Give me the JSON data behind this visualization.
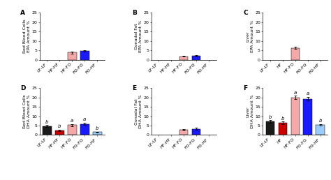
{
  "panels": [
    {
      "label": "A",
      "ylabel": "Red Blood Cells\nEPA Amount %",
      "ylim": [
        0,
        25
      ],
      "yticks": [
        0,
        5,
        10,
        15,
        20,
        25
      ],
      "categories": [
        "LF-LF",
        "HF-HF",
        "HF-FO",
        "FO-FO",
        "FO-HF"
      ],
      "values": [
        0,
        0,
        3.8,
        4.5,
        0
      ],
      "errors": [
        0,
        0,
        0.5,
        0.4,
        0
      ],
      "colors": [
        "#1a1a1a",
        "#cc0000",
        "#f4a9a8",
        "#1a1aff",
        "#99ccff"
      ],
      "sig_labels": [
        "",
        "",
        "",
        "",
        ""
      ]
    },
    {
      "label": "B",
      "ylabel": "Gonadal Fat\nEPA Amount %",
      "ylim": [
        0,
        25
      ],
      "yticks": [
        0,
        5,
        10,
        15,
        20,
        25
      ],
      "categories": [
        "LF-LF",
        "HF-HF",
        "HF-FO",
        "FO-FO",
        "FO-HF"
      ],
      "values": [
        0,
        0,
        1.7,
        2.1,
        0
      ],
      "errors": [
        0,
        0,
        0.2,
        0.3,
        0
      ],
      "colors": [
        "#1a1a1a",
        "#cc0000",
        "#f4a9a8",
        "#1a1aff",
        "#99ccff"
      ],
      "sig_labels": [
        "",
        "",
        "",
        "",
        ""
      ]
    },
    {
      "label": "C",
      "ylabel": "Liver\nEPA Amount %",
      "ylim": [
        0,
        25
      ],
      "yticks": [
        0,
        5,
        10,
        15,
        20,
        25
      ],
      "categories": [
        "LF-LF",
        "HF",
        "HF-FO",
        "FO-FO",
        "FO-HF"
      ],
      "values": [
        0,
        0,
        6.2,
        0,
        0
      ],
      "errors": [
        0,
        0,
        0.5,
        0,
        0
      ],
      "colors": [
        "#1a1a1a",
        "#cc0000",
        "#f4a9a8",
        "#1a1aff",
        "#99ccff"
      ],
      "sig_labels": [
        "",
        "",
        "",
        "",
        ""
      ]
    },
    {
      "label": "D",
      "ylabel": "Red Blood Cells\nDHA Amount %",
      "ylim": [
        0,
        25
      ],
      "yticks": [
        0,
        5,
        10,
        15,
        20,
        25
      ],
      "categories": [
        "LF-LF",
        "HF-HF",
        "HF-FO",
        "FO-FO",
        "FO-HF"
      ],
      "values": [
        4.8,
        2.5,
        5.2,
        5.9,
        1.5
      ],
      "errors": [
        0.4,
        0.3,
        0.5,
        0.6,
        0.2
      ],
      "colors": [
        "#1a1a1a",
        "#cc0000",
        "#f4a9a8",
        "#1a1aff",
        "#99ccff"
      ],
      "sig_labels": [
        "b",
        "b",
        "a",
        "a",
        "b"
      ]
    },
    {
      "label": "E",
      "ylabel": "Gonadal Fat\nDHA Amount %",
      "ylim": [
        0,
        25
      ],
      "yticks": [
        0,
        5,
        10,
        15,
        20,
        25
      ],
      "categories": [
        "LF-LF",
        "HF-HF",
        "HF-FO",
        "FO-FO",
        "FO-HF"
      ],
      "values": [
        0,
        0,
        2.8,
        3.2,
        0
      ],
      "errors": [
        0,
        0,
        0.3,
        0.6,
        0
      ],
      "colors": [
        "#1a1a1a",
        "#cc0000",
        "#f4a9a8",
        "#1a1aff",
        "#99ccff"
      ],
      "sig_labels": [
        "",
        "",
        "",
        "",
        ""
      ]
    },
    {
      "label": "F",
      "ylabel": "Liver\nDHA Amount %",
      "ylim": [
        0,
        25
      ],
      "yticks": [
        0,
        5,
        10,
        15,
        20,
        25
      ],
      "categories": [
        "LF-LF",
        "HF",
        "HF-FO",
        "FO-FO",
        "FO-HF"
      ],
      "values": [
        7.2,
        6.5,
        20.0,
        19.2,
        5.5
      ],
      "errors": [
        0.7,
        0.6,
        0.8,
        1.0,
        0.4
      ],
      "colors": [
        "#1a1a1a",
        "#cc0000",
        "#f4a9a8",
        "#1a1aff",
        "#99ccff"
      ],
      "sig_labels": [
        "b",
        "b",
        "a",
        "a",
        "b"
      ]
    }
  ],
  "figure_bg": "#ffffff",
  "bar_width": 0.7,
  "tick_fontsize": 4.5,
  "ylabel_fontsize": 4.5,
  "label_fontsize": 6.5,
  "sig_fontsize": 5.0
}
